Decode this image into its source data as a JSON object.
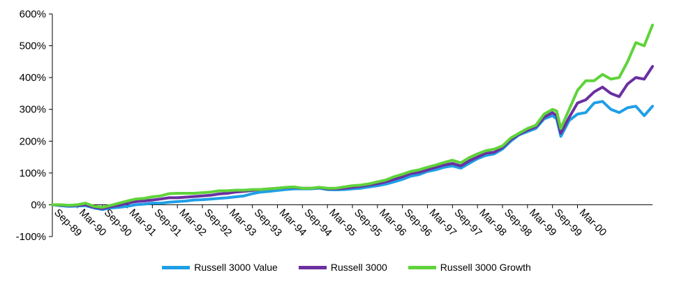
{
  "chart_data": {
    "type": "line",
    "title": "",
    "xlabel": "",
    "ylabel": "",
    "ylim": [
      -100,
      600
    ],
    "yticks": [
      -100,
      0,
      100,
      200,
      300,
      400,
      500,
      600
    ],
    "ytick_labels": [
      "-100%",
      "0%",
      "100%",
      "200%",
      "300%",
      "400%",
      "500%",
      "600%"
    ],
    "x_tick_labels": [
      "Sep-89",
      "Mar-90",
      "Sep-90",
      "Mar-91",
      "Sep-91",
      "Mar-92",
      "Sep-92",
      "Mar-93",
      "Sep-93",
      "Mar-94",
      "Sep-94",
      "Mar-95",
      "Sep-95",
      "Mar-96",
      "Sep-96",
      "Mar-97",
      "Sep-97",
      "Mar-98",
      "Sep-98",
      "Mar-99",
      "Sep-99",
      "Mar-00"
    ],
    "x_range_months": [
      0,
      126
    ],
    "grid": false,
    "legend_position": "bottom",
    "series": [
      {
        "name": "Russell 3000 Value",
        "color": "#1f9fe6",
        "points": [
          [
            0,
            0
          ],
          [
            2,
            -3
          ],
          [
            4,
            -5
          ],
          [
            6,
            -4
          ],
          [
            8,
            -3
          ],
          [
            10,
            -10
          ],
          [
            12,
            -15
          ],
          [
            14,
            -10
          ],
          [
            16,
            -8
          ],
          [
            18,
            -5
          ],
          [
            20,
            0
          ],
          [
            22,
            2
          ],
          [
            24,
            5
          ],
          [
            26,
            5
          ],
          [
            28,
            8
          ],
          [
            30,
            10
          ],
          [
            32,
            12
          ],
          [
            34,
            15
          ],
          [
            36,
            16
          ],
          [
            38,
            18
          ],
          [
            40,
            20
          ],
          [
            42,
            22
          ],
          [
            44,
            25
          ],
          [
            46,
            28
          ],
          [
            48,
            35
          ],
          [
            50,
            40
          ],
          [
            52,
            42
          ],
          [
            54,
            45
          ],
          [
            56,
            48
          ],
          [
            58,
            50
          ],
          [
            60,
            50
          ],
          [
            62,
            50
          ],
          [
            64,
            52
          ],
          [
            66,
            48
          ],
          [
            68,
            47
          ],
          [
            70,
            48
          ],
          [
            72,
            50
          ],
          [
            74,
            52
          ],
          [
            76,
            56
          ],
          [
            78,
            60
          ],
          [
            80,
            65
          ],
          [
            82,
            72
          ],
          [
            84,
            80
          ],
          [
            86,
            90
          ],
          [
            88,
            95
          ],
          [
            90,
            105
          ],
          [
            92,
            110
          ],
          [
            94,
            118
          ],
          [
            96,
            122
          ],
          [
            98,
            115
          ],
          [
            100,
            130
          ],
          [
            102,
            145
          ],
          [
            104,
            155
          ],
          [
            106,
            160
          ],
          [
            108,
            175
          ],
          [
            110,
            200
          ],
          [
            112,
            220
          ],
          [
            114,
            230
          ],
          [
            116,
            240
          ],
          [
            118,
            270
          ],
          [
            120,
            280
          ],
          [
            121,
            270
          ],
          [
            122,
            215
          ],
          [
            124,
            265
          ],
          [
            126,
            285
          ],
          [
            128,
            290
          ],
          [
            130,
            320
          ],
          [
            132,
            325
          ],
          [
            134,
            300
          ],
          [
            136,
            290
          ],
          [
            138,
            305
          ],
          [
            140,
            310
          ],
          [
            142,
            280
          ],
          [
            144,
            310
          ]
        ]
      },
      {
        "name": "Russell 3000",
        "color": "#6b2fa0",
        "points": [
          [
            0,
            0
          ],
          [
            2,
            -1
          ],
          [
            4,
            -3
          ],
          [
            6,
            -2
          ],
          [
            8,
            0
          ],
          [
            10,
            -8
          ],
          [
            12,
            -12
          ],
          [
            14,
            -6
          ],
          [
            16,
            -2
          ],
          [
            18,
            5
          ],
          [
            20,
            10
          ],
          [
            22,
            12
          ],
          [
            24,
            15
          ],
          [
            26,
            18
          ],
          [
            28,
            22
          ],
          [
            30,
            22
          ],
          [
            32,
            24
          ],
          [
            34,
            26
          ],
          [
            36,
            28
          ],
          [
            38,
            30
          ],
          [
            40,
            34
          ],
          [
            42,
            36
          ],
          [
            44,
            40
          ],
          [
            46,
            42
          ],
          [
            48,
            45
          ],
          [
            50,
            48
          ],
          [
            52,
            50
          ],
          [
            54,
            52
          ],
          [
            56,
            54
          ],
          [
            58,
            55
          ],
          [
            60,
            52
          ],
          [
            62,
            52
          ],
          [
            64,
            54
          ],
          [
            66,
            50
          ],
          [
            68,
            50
          ],
          [
            70,
            52
          ],
          [
            72,
            55
          ],
          [
            74,
            58
          ],
          [
            76,
            62
          ],
          [
            78,
            66
          ],
          [
            80,
            72
          ],
          [
            82,
            80
          ],
          [
            84,
            88
          ],
          [
            86,
            98
          ],
          [
            88,
            102
          ],
          [
            90,
            110
          ],
          [
            92,
            118
          ],
          [
            94,
            125
          ],
          [
            96,
            130
          ],
          [
            98,
            122
          ],
          [
            100,
            138
          ],
          [
            102,
            150
          ],
          [
            104,
            162
          ],
          [
            106,
            165
          ],
          [
            108,
            180
          ],
          [
            110,
            205
          ],
          [
            112,
            222
          ],
          [
            114,
            235
          ],
          [
            116,
            245
          ],
          [
            118,
            275
          ],
          [
            120,
            290
          ],
          [
            121,
            280
          ],
          [
            122,
            225
          ],
          [
            124,
            275
          ],
          [
            126,
            320
          ],
          [
            128,
            330
          ],
          [
            130,
            355
          ],
          [
            132,
            370
          ],
          [
            134,
            350
          ],
          [
            136,
            340
          ],
          [
            138,
            380
          ],
          [
            140,
            400
          ],
          [
            142,
            395
          ],
          [
            144,
            435
          ]
        ]
      },
      {
        "name": "Russell 3000 Growth",
        "color": "#5fd33a",
        "points": [
          [
            0,
            0
          ],
          [
            2,
            0
          ],
          [
            4,
            -2
          ],
          [
            6,
            0
          ],
          [
            8,
            5
          ],
          [
            10,
            -5
          ],
          [
            12,
            -8
          ],
          [
            14,
            -2
          ],
          [
            16,
            5
          ],
          [
            18,
            12
          ],
          [
            20,
            18
          ],
          [
            22,
            20
          ],
          [
            24,
            25
          ],
          [
            26,
            28
          ],
          [
            28,
            35
          ],
          [
            30,
            36
          ],
          [
            32,
            36
          ],
          [
            34,
            36
          ],
          [
            36,
            38
          ],
          [
            38,
            40
          ],
          [
            40,
            44
          ],
          [
            42,
            44
          ],
          [
            44,
            46
          ],
          [
            46,
            46
          ],
          [
            48,
            48
          ],
          [
            50,
            48
          ],
          [
            52,
            50
          ],
          [
            54,
            52
          ],
          [
            56,
            55
          ],
          [
            58,
            56
          ],
          [
            60,
            52
          ],
          [
            62,
            52
          ],
          [
            64,
            55
          ],
          [
            66,
            52
          ],
          [
            68,
            52
          ],
          [
            70,
            56
          ],
          [
            72,
            60
          ],
          [
            74,
            62
          ],
          [
            76,
            66
          ],
          [
            78,
            72
          ],
          [
            80,
            78
          ],
          [
            82,
            88
          ],
          [
            84,
            96
          ],
          [
            86,
            105
          ],
          [
            88,
            110
          ],
          [
            90,
            118
          ],
          [
            92,
            125
          ],
          [
            94,
            133
          ],
          [
            96,
            140
          ],
          [
            98,
            132
          ],
          [
            100,
            148
          ],
          [
            102,
            160
          ],
          [
            104,
            170
          ],
          [
            106,
            175
          ],
          [
            108,
            185
          ],
          [
            110,
            210
          ],
          [
            112,
            225
          ],
          [
            114,
            240
          ],
          [
            116,
            250
          ],
          [
            118,
            285
          ],
          [
            120,
            300
          ],
          [
            121,
            295
          ],
          [
            122,
            240
          ],
          [
            124,
            300
          ],
          [
            126,
            360
          ],
          [
            128,
            390
          ],
          [
            130,
            390
          ],
          [
            132,
            410
          ],
          [
            134,
            395
          ],
          [
            136,
            400
          ],
          [
            138,
            450
          ],
          [
            140,
            510
          ],
          [
            142,
            500
          ],
          [
            144,
            565
          ]
        ]
      }
    ]
  }
}
